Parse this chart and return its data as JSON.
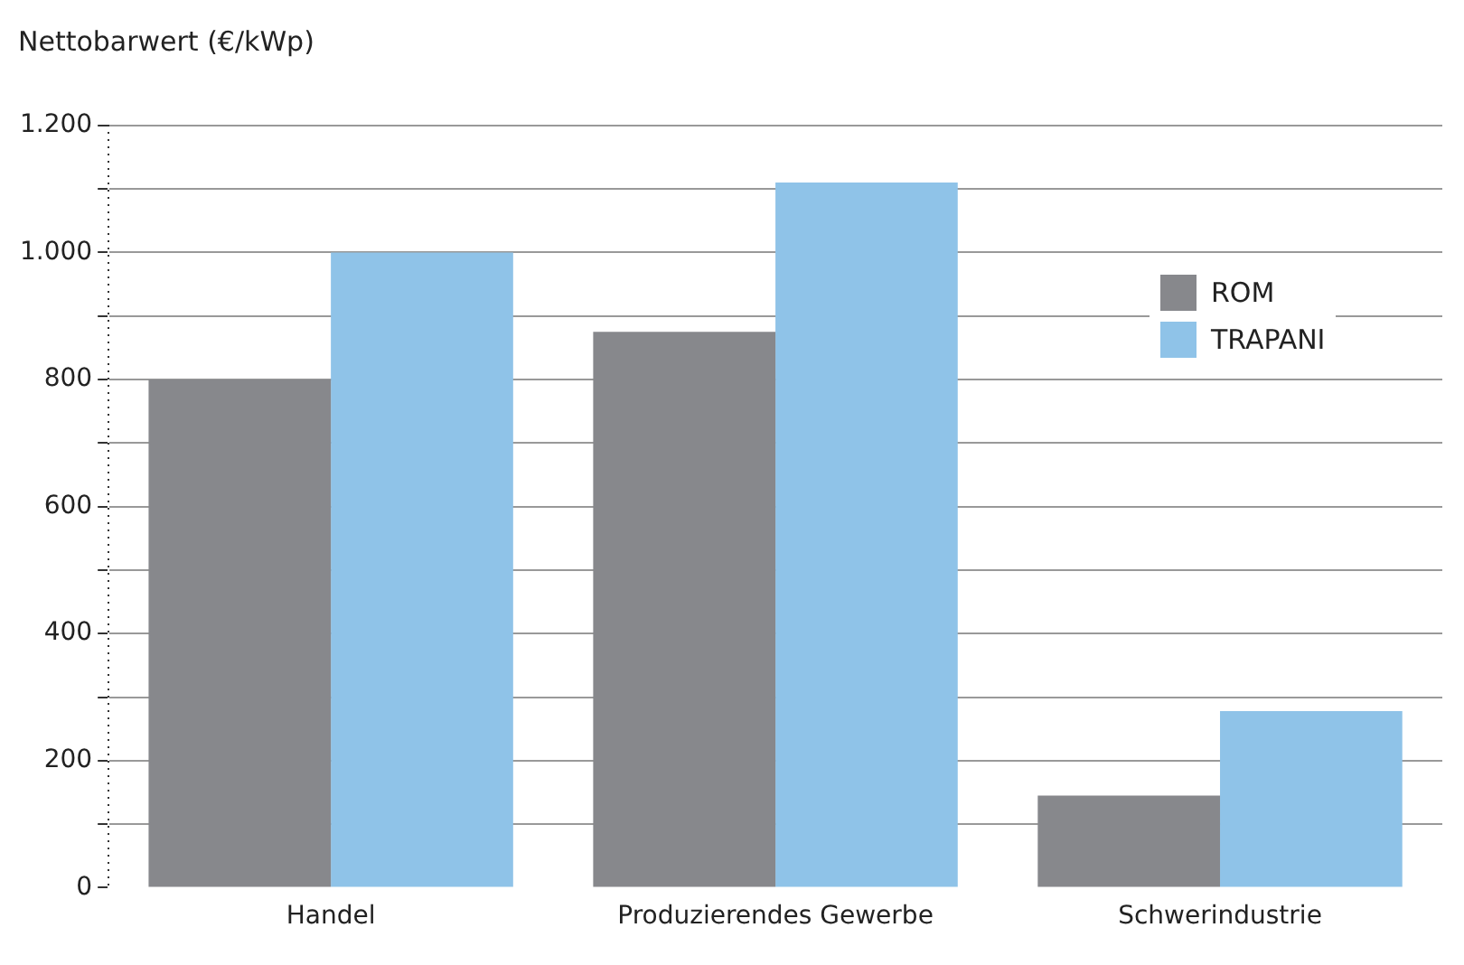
{
  "chart_data": {
    "type": "bar",
    "ylabel": "Nettobarwert (€/kWp)",
    "categories": [
      "Handel",
      "Produzierendes Gewerbe",
      "Schwerindustrie"
    ],
    "series": [
      {
        "name": "ROM",
        "color": "#87888c",
        "values": [
          800,
          875,
          145
        ]
      },
      {
        "name": "TRAPANI",
        "color": "#8fc3e8",
        "values": [
          1000,
          1110,
          278
        ]
      }
    ],
    "ylim": [
      0,
      1200
    ],
    "yticks": [
      0,
      {
        "value": 100,
        "label": null
      },
      200,
      {
        "value": 300,
        "label": null
      },
      400,
      {
        "value": 500,
        "label": null
      },
      600,
      {
        "value": 700,
        "label": null
      },
      800,
      {
        "value": 900,
        "label": null
      },
      {
        "value": 1000,
        "label": "1.000"
      },
      {
        "value": 1100,
        "label": null
      },
      {
        "value": 1200,
        "label": "1.200"
      }
    ],
    "grid": "y",
    "legend": "top right"
  }
}
